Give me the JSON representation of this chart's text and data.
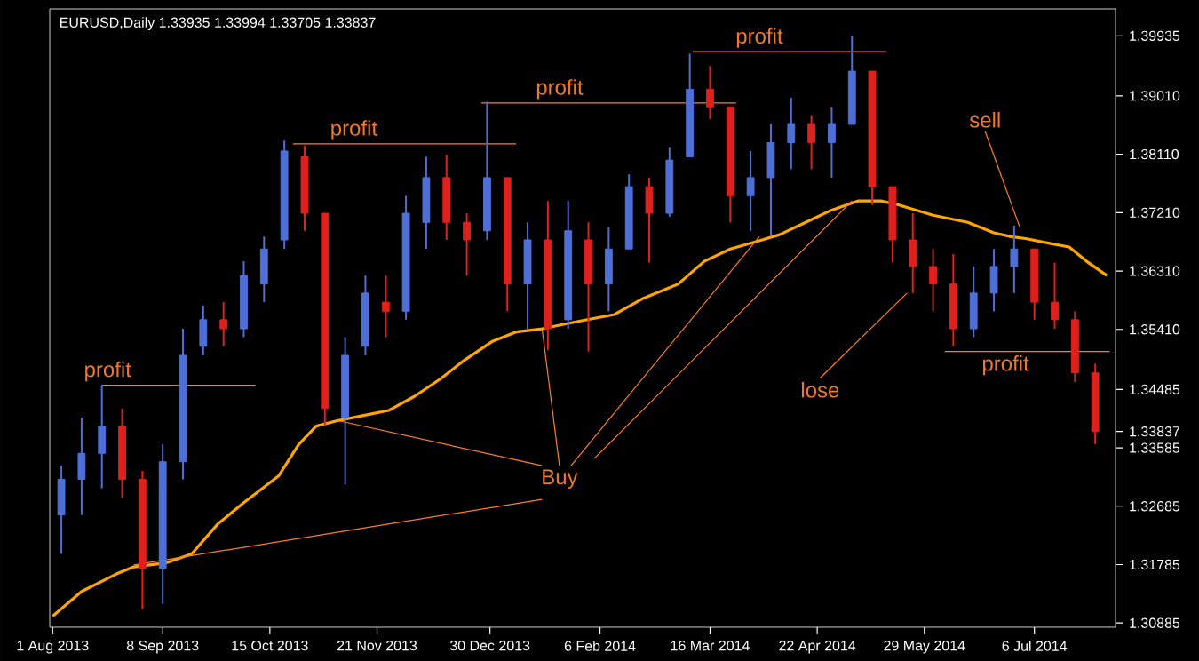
{
  "chart_data": {
    "type": "candlestick",
    "title": "EURUSD,Daily  1.33935 1.33994 1.33705 1.33837",
    "x": [
      "2013-08-04",
      "2013-08-11",
      "2013-08-18",
      "2013-08-25",
      "2013-09-01",
      "2013-09-08",
      "2013-09-15",
      "2013-09-22",
      "2013-09-29",
      "2013-10-06",
      "2013-10-13",
      "2013-10-20",
      "2013-10-27",
      "2013-11-03",
      "2013-11-10",
      "2013-11-17",
      "2013-11-24",
      "2013-12-01",
      "2013-12-08",
      "2013-12-15",
      "2013-12-22",
      "2013-12-29",
      "2014-01-05",
      "2014-01-12",
      "2014-01-19",
      "2014-01-26",
      "2014-02-02",
      "2014-02-09",
      "2014-02-16",
      "2014-02-23",
      "2014-03-02",
      "2014-03-09",
      "2014-03-16",
      "2014-03-23",
      "2014-03-30",
      "2014-04-06",
      "2014-04-13",
      "2014-04-20",
      "2014-04-27",
      "2014-05-04",
      "2014-05-11",
      "2014-05-18",
      "2014-05-25",
      "2014-06-01",
      "2014-06-08",
      "2014-06-15",
      "2014-06-22",
      "2014-06-29",
      "2014-07-06",
      "2014-07-13",
      "2014-07-20",
      "2014-07-27"
    ],
    "ohlc": [
      [
        1.3255,
        1.3331,
        1.3195,
        1.331
      ],
      [
        1.331,
        1.3405,
        1.3255,
        1.335
      ],
      [
        1.335,
        1.3455,
        1.3296,
        1.3392
      ],
      [
        1.3392,
        1.3419,
        1.3282,
        1.331
      ],
      [
        1.331,
        1.3323,
        1.311,
        1.3173
      ],
      [
        1.3173,
        1.3364,
        1.3118,
        1.3337
      ],
      [
        1.3337,
        1.3542,
        1.331,
        1.3501
      ],
      [
        1.3515,
        1.3578,
        1.3501,
        1.3556
      ],
      [
        1.3556,
        1.3583,
        1.3515,
        1.3542
      ],
      [
        1.3542,
        1.3646,
        1.3529,
        1.3624
      ],
      [
        1.3611,
        1.3684,
        1.3583,
        1.3665
      ],
      [
        1.3679,
        1.3832,
        1.3665,
        1.3816
      ],
      [
        1.3807,
        1.3824,
        1.3693,
        1.372
      ],
      [
        1.372,
        1.372,
        1.3392,
        1.3419
      ],
      [
        1.3405,
        1.3529,
        1.3302,
        1.3501
      ],
      [
        1.3515,
        1.3624,
        1.3501,
        1.3597
      ],
      [
        1.3583,
        1.3624,
        1.3529,
        1.3569
      ],
      [
        1.3569,
        1.3747,
        1.3556,
        1.372
      ],
      [
        1.3706,
        1.3807,
        1.3665,
        1.3775
      ],
      [
        1.3775,
        1.381,
        1.3679,
        1.3706
      ],
      [
        1.3706,
        1.372,
        1.3624,
        1.3679
      ],
      [
        1.3693,
        1.3892,
        1.3679,
        1.3775
      ],
      [
        1.3775,
        1.3775,
        1.3569,
        1.3611
      ],
      [
        1.3611,
        1.3706,
        1.3542,
        1.3679
      ],
      [
        1.3679,
        1.3739,
        1.3509,
        1.3542
      ],
      [
        1.3556,
        1.3739,
        1.3542,
        1.3693
      ],
      [
        1.3679,
        1.3706,
        1.3507,
        1.3611
      ],
      [
        1.3611,
        1.3698,
        1.3569,
        1.3665
      ],
      [
        1.3665,
        1.378,
        1.3665,
        1.3761
      ],
      [
        1.3761,
        1.3775,
        1.3644,
        1.372
      ],
      [
        1.372,
        1.3821,
        1.3715,
        1.3802
      ],
      [
        1.3807,
        1.3966,
        1.3807,
        1.3911
      ],
      [
        1.3911,
        1.3947,
        1.3865,
        1.3884
      ],
      [
        1.3884,
        1.3884,
        1.3706,
        1.3747
      ],
      [
        1.3747,
        1.3816,
        1.3693,
        1.3775
      ],
      [
        1.3775,
        1.3857,
        1.3687,
        1.3829
      ],
      [
        1.3829,
        1.3898,
        1.3788,
        1.3857
      ],
      [
        1.3857,
        1.387,
        1.3788,
        1.3829
      ],
      [
        1.3829,
        1.3884,
        1.3775,
        1.3857
      ],
      [
        1.3857,
        1.3994,
        1.3857,
        1.3939
      ],
      [
        1.3939,
        1.3939,
        1.3733,
        1.3761
      ],
      [
        1.3761,
        1.3761,
        1.3644,
        1.3679
      ],
      [
        1.3679,
        1.372,
        1.3597,
        1.3638
      ],
      [
        1.3638,
        1.3665,
        1.3569,
        1.3611
      ],
      [
        1.3611,
        1.3657,
        1.3515,
        1.3542
      ],
      [
        1.3542,
        1.3638,
        1.3529,
        1.3597
      ],
      [
        1.3597,
        1.3665,
        1.3569,
        1.3638
      ],
      [
        1.3638,
        1.3701,
        1.3597,
        1.3665
      ],
      [
        1.3665,
        1.3665,
        1.3556,
        1.3583
      ],
      [
        1.3583,
        1.3644,
        1.3542,
        1.3556
      ],
      [
        1.3556,
        1.3569,
        1.346,
        1.3474
      ],
      [
        1.3474,
        1.3488,
        1.3364,
        1.33837
      ]
    ],
    "series": [
      {
        "type": "line",
        "color": "#ffa500",
        "x": [
          "2013-08-01",
          "2013-08-11",
          "2013-08-23",
          "2013-08-29",
          "2013-09-09",
          "2013-09-18",
          "2013-09-27",
          "2013-10-06",
          "2013-10-18",
          "2013-10-25",
          "2013-10-31",
          "2013-11-07",
          "2013-11-16",
          "2013-11-25",
          "2013-12-04",
          "2013-12-13",
          "2013-12-21",
          "2013-12-31",
          "2014-01-08",
          "2014-01-17",
          "2014-01-29",
          "2014-02-11",
          "2014-02-21",
          "2014-03-05",
          "2014-03-14",
          "2014-03-23",
          "2014-04-03",
          "2014-04-09",
          "2014-04-18",
          "2014-04-27",
          "2014-05-06",
          "2014-05-14",
          "2014-05-20",
          "2014-06-01",
          "2014-06-13",
          "2014-06-22",
          "2014-06-28",
          "2014-07-03",
          "2014-07-12",
          "2014-07-18",
          "2014-07-24",
          "2014-07-31"
        ],
        "values": [
          1.3099,
          1.3137,
          1.3164,
          1.3175,
          1.3181,
          1.3195,
          1.3241,
          1.3274,
          1.3315,
          1.3364,
          1.3392,
          1.34,
          1.3408,
          1.3416,
          1.3438,
          1.3465,
          1.3493,
          1.3523,
          1.3537,
          1.3542,
          1.3553,
          1.3564,
          1.3589,
          1.3611,
          1.3646,
          1.3665,
          1.3679,
          1.3687,
          1.3706,
          1.3725,
          1.3739,
          1.3739,
          1.3733,
          1.3717,
          1.3706,
          1.369,
          1.3684,
          1.3681,
          1.3673,
          1.3668,
          1.3646,
          1.3624
        ]
      },
      {
        "type": "line",
        "color": "#ff7f27",
        "x": [
          "2013-08-18",
          "2013-10-10"
        ],
        "values": [
          1.3455,
          1.3455
        ]
      },
      {
        "type": "line",
        "color": "#ff7f27",
        "x": [
          "2013-10-23",
          "2014-01-08"
        ],
        "values": [
          1.3827,
          1.3827
        ]
      },
      {
        "type": "line",
        "color": "#ff7f27",
        "x": [
          "2013-12-27",
          "2014-03-25"
        ],
        "values": [
          1.389,
          1.389
        ]
      },
      {
        "type": "line",
        "color": "#ff7f27",
        "x": [
          "2014-03-10",
          "2014-05-16"
        ],
        "values": [
          1.3969,
          1.3969
        ]
      },
      {
        "type": "line",
        "color": "#ff7f27",
        "x": [
          "2014-06-05",
          "2014-08-01"
        ],
        "values": [
          1.3507,
          1.3507
        ]
      },
      {
        "type": "line",
        "color": "#ff7f27",
        "x": [
          "2014-01-17",
          "2013-11-08"
        ],
        "values": [
          1.3331,
          1.34
        ]
      },
      {
        "type": "line",
        "color": "#ff7f27",
        "x": [
          "2014-01-17",
          "2013-08-29"
        ],
        "values": [
          1.3279,
          1.3178
        ]
      },
      {
        "type": "line",
        "color": "#ff7f27",
        "x": [
          "2014-01-23",
          "2014-01-17"
        ],
        "values": [
          1.3331,
          1.3542
        ]
      },
      {
        "type": "line",
        "color": "#ff7f27",
        "x": [
          "2014-01-27",
          "2014-04-02"
        ],
        "values": [
          1.3331,
          1.3684
        ]
      },
      {
        "type": "line",
        "color": "#ff7f27",
        "x": [
          "2014-02-04",
          "2014-05-04"
        ],
        "values": [
          1.3342,
          1.3739
        ]
      },
      {
        "type": "line",
        "color": "#ff7f27",
        "x": [
          "2014-06-19",
          "2014-07-01"
        ],
        "values": [
          1.3846,
          1.3698
        ]
      },
      {
        "type": "line",
        "color": "#ff7f27",
        "x": [
          "2014-04-23",
          "2014-05-23"
        ],
        "values": [
          1.3466,
          1.3597
        ]
      }
    ],
    "annotations": [
      {
        "text": "profit",
        "x": "2013-08-20",
        "y": 1.3455
      },
      {
        "text": "profit",
        "x": "2013-11-13",
        "y": 1.3827
      },
      {
        "text": "profit",
        "x": "2014-01-23",
        "y": 1.389
      },
      {
        "text": "profit",
        "x": "2014-04-02",
        "y": 1.3969
      },
      {
        "text": "profit",
        "x": "2014-06-26",
        "y": 1.3507
      },
      {
        "text": "sell",
        "x": "2014-06-19",
        "y": 1.3846
      },
      {
        "text": "lose",
        "x": "2014-04-23",
        "y": 1.3466
      },
      {
        "text": "Buy",
        "x": "2014-01-23",
        "y": 1.3331
      }
    ],
    "xlim": [
      "2013-07-31",
      "2014-08-03"
    ],
    "ylim": [
      1.3082,
      1.4035
    ],
    "xticks": [
      {
        "value": "2013-08-01",
        "label": "1 Aug 2013"
      },
      {
        "value": "2013-09-08",
        "label": "8 Sep 2013"
      },
      {
        "value": "2013-10-15",
        "label": "15 Oct 2013"
      },
      {
        "value": "2013-11-21",
        "label": "21 Nov 2013"
      },
      {
        "value": "2013-12-30",
        "label": "30 Dec 2013"
      },
      {
        "value": "2014-02-06",
        "label": "6 Feb 2014"
      },
      {
        "value": "2014-03-16",
        "label": "16 Mar 2014"
      },
      {
        "value": "2014-04-22",
        "label": "22 Apr 2014"
      },
      {
        "value": "2014-05-29",
        "label": "29 May 2014"
      },
      {
        "value": "2014-07-06",
        "label": "6 Jul 2014"
      }
    ],
    "yticks": [
      1.39935,
      {
        "value": 1.3901,
        "label": "1.39010"
      },
      {
        "value": 1.3811,
        "label": "1.38110"
      },
      {
        "value": 1.3721,
        "label": "1.37210"
      },
      {
        "value": 1.3631,
        "label": "1.36310"
      },
      {
        "value": 1.3541,
        "label": "1.35410"
      },
      1.34485,
      {
        "value": 1.33837,
        "label": "1.33837"
      },
      1.33585,
      1.32685,
      1.31785,
      1.30885
    ]
  }
}
